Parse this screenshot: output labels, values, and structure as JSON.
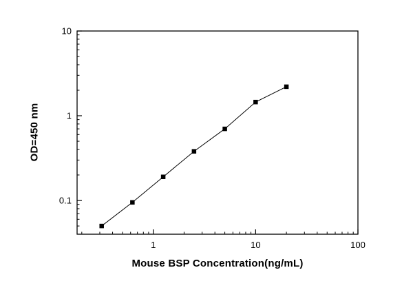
{
  "chart_data": {
    "type": "scatter",
    "title": "",
    "xlabel": "Mouse BSP Concentration(ng/mL)",
    "ylabel": "OD=450 nm",
    "x_scale": "log",
    "y_scale": "log",
    "xlim": [
      0.18,
      100
    ],
    "ylim": [
      0.04,
      10
    ],
    "x": [
      0.313,
      0.625,
      1.25,
      2.5,
      5,
      10,
      20
    ],
    "y": [
      0.05,
      0.095,
      0.19,
      0.38,
      0.7,
      1.45,
      2.2
    ],
    "x_ticks": [
      {
        "value": 1,
        "label": "1"
      },
      {
        "value": 10,
        "label": "10"
      },
      {
        "value": 100,
        "label": "100"
      }
    ],
    "y_ticks": [
      {
        "value": 0.1,
        "label": "0.1"
      },
      {
        "value": 1,
        "label": "1"
      },
      {
        "value": 10,
        "label": "10"
      }
    ],
    "grid": false,
    "legend": "none",
    "marker": "filled-square",
    "line_color": "#000000",
    "marker_color": "#000000",
    "frame_color": "#000000",
    "background": "#ffffff"
  }
}
